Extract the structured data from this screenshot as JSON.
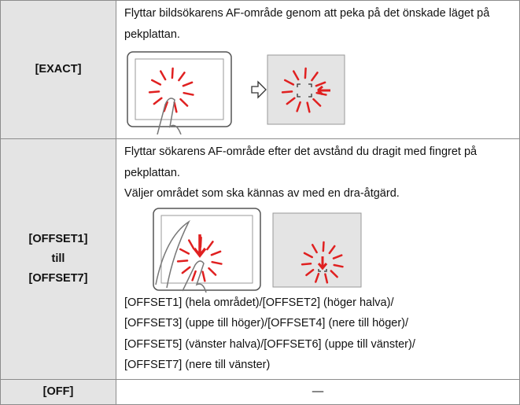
{
  "table": {
    "rows": [
      {
        "label_lines": [
          "[EXACT]"
        ],
        "paragraphs": [
          "Flyttar bildsökarens AF-område genom att peka på det önskade läget på pekplattan."
        ]
      },
      {
        "label_lines": [
          "[OFFSET1]",
          "till",
          "[OFFSET7]"
        ],
        "paragraphs": [
          "Flyttar sökarens AF-område efter det avstånd du dragit med fingret på pekplattan.",
          "Väljer området som ska kännas av med en dra-åtgärd."
        ],
        "options": [
          "[OFFSET1] (hela området)/[OFFSET2] (höger halva)/",
          "[OFFSET3] (uppe till höger)/[OFFSET4] (nere till höger)/",
          "[OFFSET5] (vänster halva)/[OFFSET6] (uppe till vänster)/",
          "[OFFSET7] (nere till vänster)"
        ]
      },
      {
        "label_lines": [
          "[OFF]"
        ],
        "value": "—"
      }
    ]
  }
}
